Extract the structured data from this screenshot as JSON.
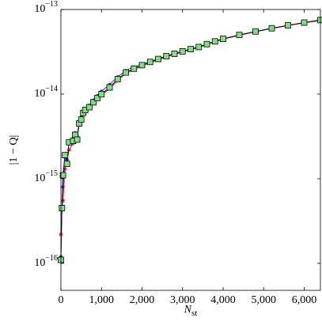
{
  "chart_data": {
    "type": "line",
    "x_label": "Nst",
    "y_label": "|1 − Q|",
    "y_log": true,
    "xlim": [
      0,
      6400
    ],
    "ylim": [
      4.8e-17,
      1e-13
    ],
    "xticks": [
      0,
      {
        "value": 1000,
        "label": "1,000"
      },
      {
        "value": 2000,
        "label": "2,000"
      },
      {
        "value": 3000,
        "label": "3,000"
      },
      {
        "value": 4000,
        "label": "4,000"
      },
      {
        "value": 5000,
        "label": "5,000"
      },
      {
        "value": 6000,
        "label": "6,000"
      }
    ],
    "yticks": [
      {
        "value": 1e-16,
        "label": "10−16"
      },
      {
        "value": 1e-15,
        "label": "10−15"
      },
      {
        "value": 1e-14,
        "label": "10−14"
      },
      {
        "value": 1e-13,
        "label": "10−13"
      }
    ],
    "series": [
      {
        "color": "#e8000b",
        "marker": "star",
        "x": [
          0,
          25,
          50,
          100,
          150,
          200,
          300,
          350,
          400,
          450,
          500,
          550,
          600,
          700,
          800,
          900,
          1000,
          1200,
          1400,
          1600,
          1800,
          2000,
          2200,
          2400,
          2600,
          2800,
          3000,
          3200,
          3400,
          3600,
          3800,
          4000,
          4400,
          4800,
          5200,
          5600,
          6000,
          6400
        ],
        "values": [
          2.2e-16,
          4.3e-16,
          5.5e-16,
          1.3e-15,
          1.6e-15,
          2.2e-15,
          2.6e-15,
          3.1e-15,
          3.2e-15,
          4.3e-15,
          5e-15,
          5.8e-15,
          6.3e-15,
          6.9e-15,
          7.8e-15,
          8.8e-15,
          9.8e-15,
          1.15e-14,
          1.45e-14,
          1.75e-14,
          1.95e-14,
          2.15e-14,
          2.35e-14,
          2.55e-14,
          2.75e-14,
          2.95e-14,
          3.15e-14,
          3.35e-14,
          3.55e-14,
          3.85e-14,
          4.15e-14,
          4.45e-14,
          4.95e-14,
          5.45e-14,
          5.95e-14,
          6.45e-14,
          6.95e-14,
          7.4e-14
        ]
      },
      {
        "color": "#1f1fff",
        "marker": "circle",
        "x": [
          0,
          25,
          50,
          100,
          150,
          200,
          300,
          350,
          400,
          450,
          500,
          550,
          600,
          700,
          800,
          900,
          1000,
          1200,
          1400,
          1600,
          1800,
          2000,
          2200,
          2400,
          2600,
          2800,
          3000,
          3200,
          3400,
          3600,
          3800,
          4000,
          4400,
          4800,
          5200,
          5600,
          6000,
          6400
        ],
        "values": [
          1.2e-16,
          4.6e-16,
          8e-16,
          1.8e-15,
          1.7e-15,
          2.6e-15,
          3e-15,
          3.5e-15,
          3.1e-15,
          4.8e-15,
          5.4e-15,
          6.3e-15,
          6.8e-15,
          7.4e-15,
          8.5e-15,
          9.6e-15,
          1.08e-14,
          1.3e-14,
          1.6e-14,
          1.9e-14,
          2.1e-14,
          2.25e-14,
          2.42e-14,
          2.62e-14,
          2.82e-14,
          3.02e-14,
          3.22e-14,
          3.42e-14,
          3.62e-14,
          3.92e-14,
          4.22e-14,
          4.5e-14,
          5e-14,
          5.5e-14,
          6e-14,
          6.5e-14,
          7e-14,
          7.5e-14
        ]
      },
      {
        "color": "#000000",
        "marker": "square",
        "marker_fill": "#7fe07f",
        "x": [
          0,
          25,
          50,
          100,
          150,
          200,
          300,
          350,
          400,
          450,
          500,
          550,
          600,
          700,
          800,
          900,
          1000,
          1200,
          1400,
          1600,
          1800,
          2000,
          2200,
          2400,
          2600,
          2800,
          3000,
          3200,
          3400,
          3600,
          3800,
          4000,
          4400,
          4800,
          5200,
          5600,
          6000,
          6400
        ],
        "values": [
          1.1e-16,
          4.5e-16,
          1.1e-15,
          1.9e-15,
          1.5e-15,
          2.7e-15,
          2.8e-15,
          3.3e-15,
          2.9e-15,
          4.5e-15,
          5e-15,
          6e-15,
          6.5e-15,
          7e-15,
          8e-15,
          9e-15,
          1e-14,
          1.2e-14,
          1.5e-14,
          1.8e-14,
          2e-14,
          2.2e-14,
          2.4e-14,
          2.6e-14,
          2.8e-14,
          3e-14,
          3.2e-14,
          3.4e-14,
          3.6e-14,
          3.9e-14,
          4.2e-14,
          4.5e-14,
          5e-14,
          5.5e-14,
          6e-14,
          6.5e-14,
          7e-14,
          7.5e-14
        ]
      }
    ]
  }
}
